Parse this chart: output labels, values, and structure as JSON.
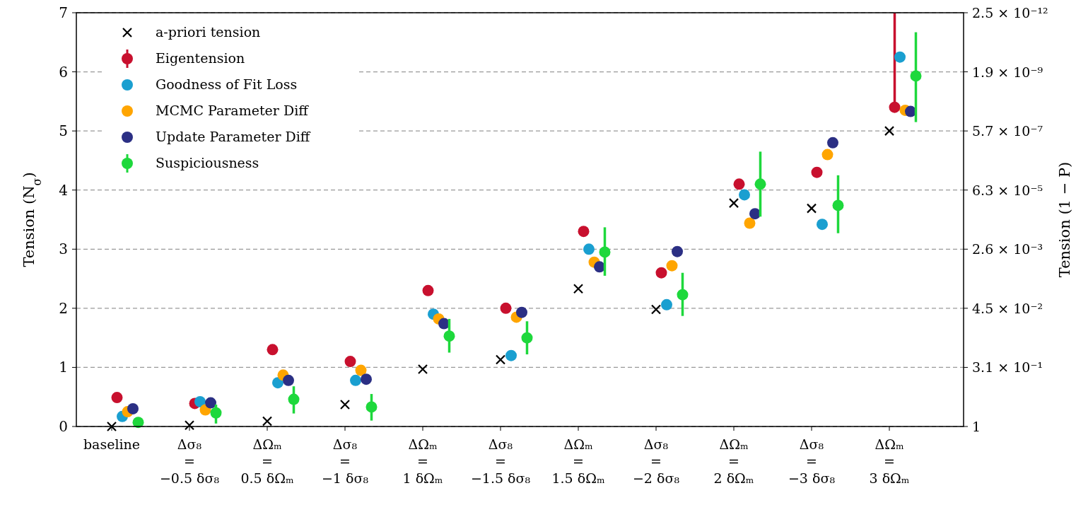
{
  "chart_data": {
    "type": "scatter",
    "ylabel": "Tension (N$_{σ}$)",
    "categories": [
      "baseline",
      "Δσ₈\n=\n−0.5 δσ₈",
      "ΔΩₘ\n=\n0.5 δΩₘ",
      "Δσ₈\n=\n−1 δσ₈",
      "ΔΩₘ\n=\n1 δΩₘ",
      "Δσ₈\n=\n−1.5 δσ₈",
      "ΔΩₘ\n=\n1.5 δΩₘ",
      "Δσ₈\n=\n−2 δσ₈",
      "ΔΩₘ\n=\n2 δΩₘ",
      "Δσ₈\n=\n−3 δσ₈",
      "ΔΩₘ\n=\n3 δΩₘ"
    ],
    "ylim": [
      0,
      7
    ],
    "yticks": [
      0,
      1,
      2,
      3,
      4,
      5,
      6,
      7
    ],
    "annotations": [
      "1",
      "3.1 × 10⁻¹",
      "4.5 × 10⁻²",
      "2.6 × 10⁻³",
      "6.3 × 10⁻⁵",
      "5.7 × 10⁻⁷",
      "1.9 × 10⁻⁹",
      "2.5 × 10⁻¹²",
      "Tension (1 − P)"
    ],
    "grid": "y",
    "legend": "top left",
    "series": [
      {
        "name": "a-priori tension",
        "color": "#000000",
        "marker": "cross",
        "values": [
          0,
          0.02,
          0.09,
          0.37,
          0.97,
          1.13,
          2.33,
          1.98,
          3.78,
          3.69,
          5.0
        ]
      },
      {
        "name": "Eigentension",
        "color": "#c8102e",
        "marker": "circle",
        "values": [
          0.49,
          0.39,
          1.3,
          1.1,
          2.3,
          2.0,
          3.3,
          2.6,
          4.1,
          4.3,
          5.4
        ],
        "errors": [
          null,
          null,
          null,
          null,
          null,
          null,
          null,
          null,
          null,
          null,
          [
            5.4,
            7.0
          ]
        ]
      },
      {
        "name": "Goodness of Fit Loss",
        "color": "#1a9fd0",
        "marker": "circle",
        "values": [
          0.17,
          0.42,
          0.74,
          0.78,
          1.9,
          1.2,
          3.0,
          2.06,
          3.92,
          3.42,
          6.25
        ]
      },
      {
        "name": "MCMC Parameter Diff",
        "color": "#ffa500",
        "marker": "circle",
        "values": [
          0.25,
          0.28,
          0.87,
          0.95,
          1.82,
          1.85,
          2.78,
          2.72,
          3.44,
          4.6,
          5.35
        ]
      },
      {
        "name": "Update Parameter Diff",
        "color": "#2b2f84",
        "marker": "circle",
        "values": [
          0.3,
          0.4,
          0.78,
          0.8,
          1.74,
          1.93,
          2.7,
          2.96,
          3.6,
          4.8,
          5.33
        ]
      },
      {
        "name": "Suspiciousness",
        "color": "#1ed83c",
        "marker": "circle",
        "values": [
          0.07,
          0.23,
          0.46,
          0.33,
          1.53,
          1.5,
          2.95,
          2.23,
          4.1,
          3.74,
          5.93
        ],
        "errors": [
          null,
          [
            0.05,
            0.37
          ],
          [
            0.22,
            0.68
          ],
          [
            0.1,
            0.55
          ],
          [
            1.25,
            1.82
          ],
          [
            1.22,
            1.78
          ],
          [
            2.55,
            3.37
          ],
          [
            1.87,
            2.6
          ],
          [
            3.55,
            4.65
          ],
          [
            3.27,
            4.25
          ],
          [
            5.15,
            6.67
          ]
        ]
      }
    ]
  }
}
